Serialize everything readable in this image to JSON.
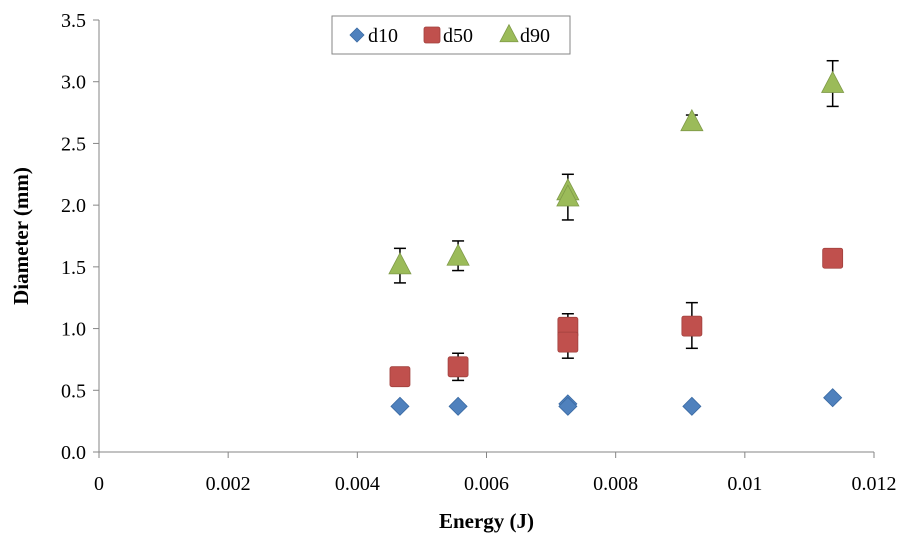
{
  "chart_data": {
    "type": "scatter",
    "title": "",
    "xlabel": "Energy (J)",
    "ylabel": "Diameter (mm)",
    "xlim": [
      0,
      0.012
    ],
    "ylim": [
      0,
      3.5
    ],
    "x_ticks": [
      0,
      0.002,
      0.004,
      0.006,
      0.008,
      0.01,
      0.012
    ],
    "x_tick_labels": [
      "0",
      "0.002",
      "0.004",
      "0.006",
      "0.008",
      "0.01",
      "0.012"
    ],
    "y_ticks": [
      0,
      0.5,
      1.0,
      1.5,
      2.0,
      2.5,
      3.0,
      3.5
    ],
    "y_tick_labels": [
      "0.0",
      "0.5",
      "1.0",
      "1.5",
      "2.0",
      "2.5",
      "3.0",
      "3.5"
    ],
    "grid": false,
    "legend": "top-center",
    "series": [
      {
        "name": "d10",
        "marker": "diamond",
        "color": "#4f81bd",
        "points": [
          {
            "x": 0.00466,
            "y": 0.37
          },
          {
            "x": 0.00556,
            "y": 0.37
          },
          {
            "x": 0.00726,
            "y": 0.39
          },
          {
            "x": 0.00726,
            "y": 0.37
          },
          {
            "x": 0.00918,
            "y": 0.37
          },
          {
            "x": 0.01136,
            "y": 0.44
          }
        ]
      },
      {
        "name": "d50",
        "marker": "square",
        "color": "#c0504d",
        "points": [
          {
            "x": 0.00466,
            "y": 0.61
          },
          {
            "x": 0.00556,
            "y": 0.69,
            "err_low": 0.58,
            "err_high": 0.8
          },
          {
            "x": 0.00726,
            "y": 1.01,
            "err_low": 1.01,
            "err_high": 1.12
          },
          {
            "x": 0.00726,
            "y": 0.89,
            "err_low": 0.76,
            "err_high": 0.89
          },
          {
            "x": 0.00918,
            "y": 1.02,
            "err_low": 0.84,
            "err_high": 1.21
          },
          {
            "x": 0.01136,
            "y": 1.57
          }
        ]
      },
      {
        "name": "d90",
        "marker": "triangle",
        "color": "#9bbb59",
        "points": [
          {
            "x": 0.00466,
            "y": 1.51,
            "err_low": 1.37,
            "err_high": 1.65
          },
          {
            "x": 0.00556,
            "y": 1.58,
            "err_low": 1.47,
            "err_high": 1.71
          },
          {
            "x": 0.00726,
            "y": 2.11,
            "err_low": 2.11,
            "err_high": 2.25
          },
          {
            "x": 0.00726,
            "y": 2.06,
            "err_low": 1.88,
            "err_high": 2.06
          },
          {
            "x": 0.00918,
            "y": 2.67,
            "err_low": 2.67,
            "err_high": 2.73
          },
          {
            "x": 0.01136,
            "y": 2.98,
            "err_low": 2.8,
            "err_high": 3.17
          }
        ]
      }
    ]
  }
}
